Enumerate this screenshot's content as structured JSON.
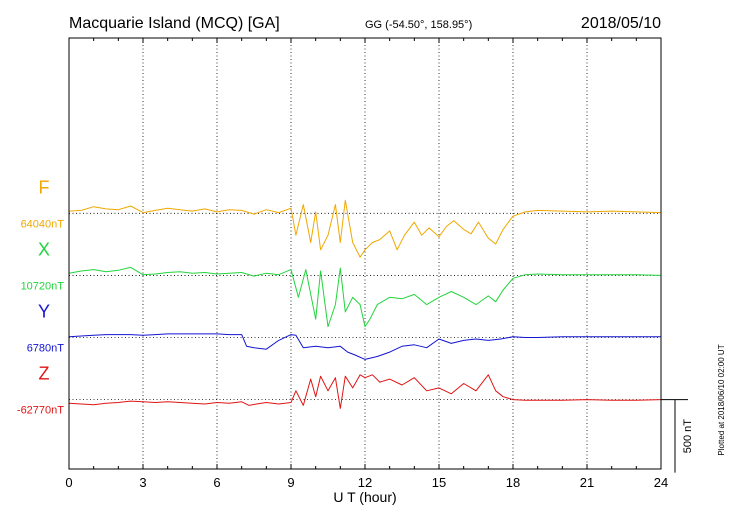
{
  "header": {
    "station": "Macquarie Island (MCQ)  [GA]",
    "coords": "GG (-54.50°, 158.95°)",
    "date": "2018/05/10"
  },
  "plotted_note": "Plotted at 2018/06/10 02:00 UT",
  "chart_data": {
    "type": "line",
    "title": "Macquarie Island (MCQ)  [GA]",
    "subtitle": "GG (-54.50°, 158.95°)",
    "date_label": "2018/05/10",
    "xlabel": "U T (hour)",
    "ylabel": "",
    "xlim": [
      0,
      24
    ],
    "x_ticks": [
      0,
      3,
      6,
      9,
      12,
      15,
      18,
      21,
      24
    ],
    "x_tick_labels": [
      "0",
      "3",
      "6",
      "9",
      "12",
      "15",
      "18",
      "21",
      "24"
    ],
    "grid": true,
    "scale_bar": {
      "label": "500 nT",
      "value_nT": 500
    },
    "ylim_nT_relative": [
      -1750,
      1200
    ],
    "series": [
      {
        "name": "F",
        "baseline_label": "64040nT",
        "baseline_nT": 64040,
        "offset_nT": 0,
        "color": "#f0a800",
        "x": [
          0,
          0.5,
          1,
          1.5,
          2,
          2.5,
          3,
          3.5,
          4,
          4.5,
          5,
          5.5,
          6,
          6.5,
          7,
          7.5,
          8,
          8.5,
          9,
          9.2,
          9.5,
          9.8,
          10,
          10.2,
          10.5,
          10.8,
          11,
          11.2,
          11.5,
          11.8,
          12,
          12.3,
          12.6,
          13,
          13.3,
          13.6,
          14,
          14.3,
          14.6,
          15,
          15.3,
          15.6,
          16,
          16.3,
          16.6,
          17,
          17.3,
          17.6,
          18,
          18.5,
          19,
          20,
          21,
          22,
          23,
          24
        ],
        "y": [
          15,
          20,
          45,
          30,
          25,
          50,
          5,
          20,
          35,
          25,
          15,
          30,
          10,
          25,
          20,
          -5,
          25,
          5,
          35,
          -150,
          60,
          -200,
          10,
          -250,
          -150,
          60,
          -200,
          90,
          -200,
          -300,
          -250,
          -200,
          -180,
          -120,
          -250,
          -150,
          -60,
          -150,
          -100,
          -160,
          -90,
          -50,
          -110,
          -140,
          -60,
          -170,
          -210,
          -110,
          -20,
          10,
          20,
          15,
          10,
          15,
          10,
          5
        ]
      },
      {
        "name": "X",
        "baseline_label": "10720nT",
        "baseline_nT": 10720,
        "offset_nT": -425,
        "color": "#22d43c",
        "x": [
          0,
          0.5,
          1,
          1.5,
          2,
          2.5,
          3,
          3.5,
          4,
          4.5,
          5,
          5.5,
          6,
          6.5,
          7,
          7.5,
          8,
          8.5,
          9,
          9.3,
          9.6,
          10,
          10.2,
          10.5,
          10.8,
          11,
          11.2,
          11.5,
          11.8,
          12,
          12.2,
          12.5,
          13,
          13.5,
          14,
          14.5,
          15,
          15.5,
          16,
          16.5,
          17,
          17.3,
          17.6,
          18,
          18.5,
          19,
          20,
          21,
          22,
          23,
          24
        ],
        "y": [
          15,
          30,
          40,
          25,
          35,
          55,
          5,
          10,
          20,
          25,
          15,
          20,
          10,
          15,
          20,
          -5,
          15,
          5,
          40,
          -150,
          40,
          -300,
          30,
          -350,
          -200,
          50,
          -250,
          -150,
          -200,
          -350,
          -300,
          -200,
          -150,
          -160,
          -130,
          -200,
          -150,
          -110,
          -150,
          -200,
          -140,
          -180,
          -100,
          -20,
          5,
          10,
          5,
          5,
          5,
          5,
          0
        ]
      },
      {
        "name": "Y",
        "baseline_label": "6780nT",
        "baseline_nT": 6780,
        "offset_nT": -850,
        "color": "#1414d2",
        "x": [
          0,
          0.5,
          1,
          1.5,
          2,
          2.5,
          3,
          3.5,
          4,
          4.5,
          5,
          5.5,
          6,
          6.5,
          7,
          7.2,
          7.5,
          8,
          8.5,
          9,
          9.2,
          9.5,
          10,
          10.5,
          11,
          11.3,
          11.6,
          12,
          12.5,
          13,
          13.5,
          14,
          14.5,
          15,
          15.5,
          16,
          16.5,
          17,
          17.5,
          18,
          18.5,
          19,
          20,
          21,
          22,
          23,
          24
        ],
        "y": [
          5,
          10,
          15,
          20,
          20,
          20,
          15,
          20,
          25,
          25,
          25,
          25,
          25,
          20,
          20,
          -60,
          -70,
          -80,
          -20,
          20,
          15,
          -70,
          -60,
          -70,
          -60,
          -100,
          -120,
          -150,
          -130,
          -100,
          -60,
          -50,
          -70,
          -10,
          -40,
          -20,
          -10,
          -20,
          -10,
          5,
          0,
          0,
          5,
          5,
          5,
          5,
          5
        ]
      },
      {
        "name": "Z",
        "baseline_label": "-62770nT",
        "baseline_nT": -62770,
        "offset_nT": -1275,
        "color": "#e01414",
        "x": [
          0,
          0.5,
          1,
          1.5,
          2,
          2.5,
          3,
          3.5,
          4,
          4.5,
          5,
          5.5,
          6,
          6.5,
          7,
          7.3,
          7.6,
          8,
          8.5,
          9,
          9.2,
          9.5,
          9.8,
          10,
          10.2,
          10.5,
          10.8,
          11,
          11.2,
          11.5,
          11.8,
          12,
          12.3,
          12.6,
          13,
          13.5,
          14,
          14.5,
          15,
          15.5,
          16,
          16.5,
          17,
          17.3,
          17.6,
          18,
          18.5,
          19,
          20,
          21,
          22,
          23,
          24
        ],
        "y": [
          -25,
          -30,
          -35,
          -25,
          -20,
          -10,
          -15,
          -20,
          -15,
          -20,
          -25,
          -30,
          -20,
          -25,
          -15,
          -40,
          -30,
          -20,
          -30,
          -20,
          60,
          -40,
          140,
          20,
          160,
          60,
          150,
          -60,
          160,
          80,
          170,
          150,
          170,
          120,
          140,
          100,
          150,
          60,
          80,
          40,
          110,
          60,
          170,
          60,
          20,
          0,
          -5,
          -5,
          -5,
          0,
          -5,
          -5,
          0
        ]
      }
    ]
  }
}
